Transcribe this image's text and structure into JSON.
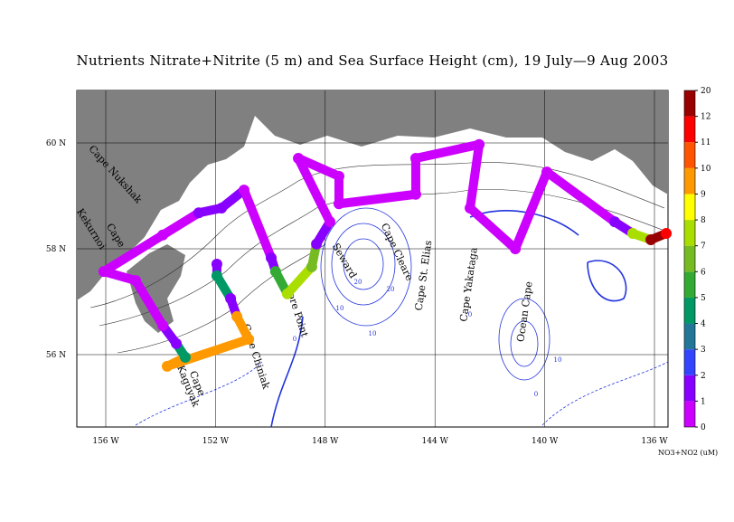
{
  "map": {
    "title": "Nutrients Nitrate+Nitrite (5 m) and Sea Surface Height (cm), 19 July—9 Aug 2003",
    "lon_ticks": [
      {
        "value": 156,
        "label": "156 W"
      },
      {
        "value": 152,
        "label": "152 W"
      },
      {
        "value": 148,
        "label": "148 W"
      },
      {
        "value": 144,
        "label": "144 W"
      },
      {
        "value": 140,
        "label": "140 W"
      },
      {
        "value": 136,
        "label": "136 W"
      }
    ],
    "lat_ticks": [
      {
        "value": 60,
        "label": "60 N"
      },
      {
        "value": 58,
        "label": "58 N"
      },
      {
        "value": 56,
        "label": "56 N"
      }
    ],
    "places": [
      "Cape Nukshak",
      "Cape",
      "Kekurnoi",
      "Cape Chiniak",
      "Cape",
      "Kaguyak",
      "Gore Point",
      "Seward",
      "Cape Cleare",
      "Cape St. Elias",
      "Cape Yakataga",
      "Ocean Cape"
    ],
    "contour_labels": [
      "20",
      "20",
      "10",
      "10",
      "0",
      "0",
      "0",
      "10"
    ],
    "colorbar": {
      "label": "NO3+NO2 (uM)",
      "ticks": [
        0,
        1,
        2,
        3,
        4,
        5,
        6,
        7,
        8,
        9,
        10,
        11,
        12,
        20
      ],
      "colors": [
        "#cc00ff",
        "#8800ff",
        "#3344ff",
        "#227799",
        "#009966",
        "#33aa33",
        "#77bb22",
        "#aadd00",
        "#ffff00",
        "#ff9900",
        "#ff5500",
        "#ff0000",
        "#990000"
      ]
    },
    "track": {
      "lon": [
        151.95,
        151.95,
        151.45,
        151.22,
        150.79,
        153.76,
        153.1,
        153.43,
        153.92,
        154.91,
        156.07,
        153.92,
        152.61,
        151.78,
        150.96,
        149.97,
        149.81,
        149.38,
        148.49,
        148.32,
        147.83,
        148.98,
        147.5,
        147.5,
        144.7,
        144.7,
        142.39,
        142.72,
        141.07,
        139.92,
        137.45,
        136.79,
        136.13,
        135.57
      ],
      "lat": [
        57.71,
        57.49,
        57.06,
        56.72,
        56.29,
        55.78,
        55.95,
        56.21,
        56.55,
        57.4,
        57.57,
        58.26,
        58.68,
        58.77,
        59.11,
        57.83,
        57.57,
        57.15,
        57.66,
        58.09,
        58.51,
        59.71,
        59.37,
        58.85,
        59.03,
        59.71,
        59.97,
        58.77,
        58.0,
        59.45,
        58.51,
        58.29,
        58.17,
        58.29
      ],
      "values": [
        2,
        4.5,
        1.5,
        9.5,
        9.5,
        9.5,
        4.5,
        2,
        0.3,
        0.3,
        0.3,
        0.3,
        1.5,
        2,
        0.3,
        1.5,
        5.5,
        8,
        6.5,
        2,
        0.3,
        0.3,
        0.3,
        0.3,
        0.3,
        0.3,
        0.3,
        0.3,
        0.3,
        0.3,
        2,
        8,
        15,
        11.5
      ]
    }
  }
}
